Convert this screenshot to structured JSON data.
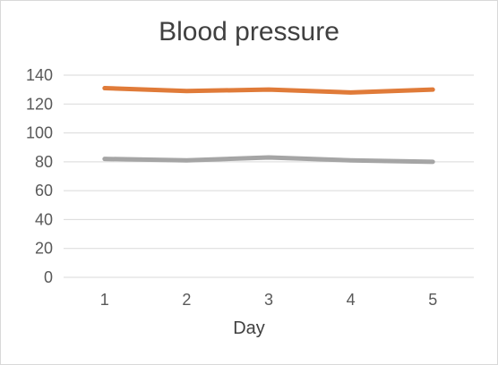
{
  "chart_data": {
    "type": "line",
    "title": "Blood pressure",
    "xlabel": "Day",
    "ylabel": "",
    "x": [
      "1",
      "2",
      "3",
      "4",
      "5"
    ],
    "ylim": [
      0,
      140
    ],
    "yticks": [
      0,
      20,
      40,
      60,
      80,
      100,
      120,
      140
    ],
    "grid": true,
    "legend": "none",
    "series": [
      {
        "values": [
          131,
          129,
          130,
          128,
          130
        ],
        "color": "#E07B39"
      },
      {
        "values": [
          82,
          81,
          83,
          81,
          80
        ],
        "color": "#A5A5A5"
      }
    ]
  }
}
